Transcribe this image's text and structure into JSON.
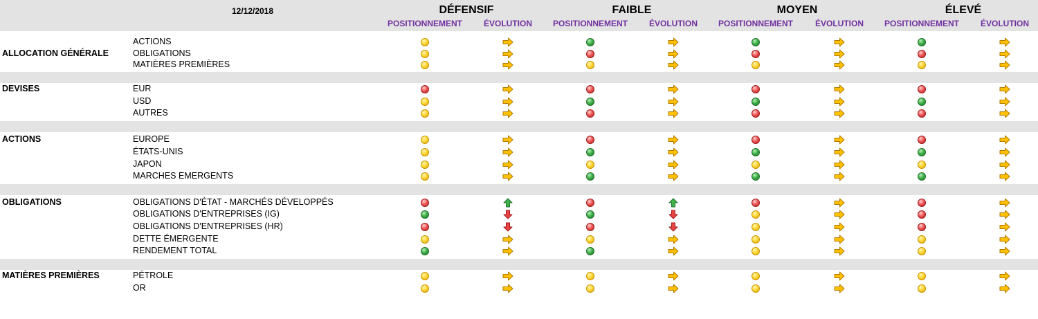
{
  "header": {
    "date": "12/12/2018",
    "profiles": [
      "DÉFENSIF",
      "FAIBLE",
      "MOYEN",
      "ÉLEVÉ"
    ],
    "sub_labels": {
      "position": "POSITIONNEMENT",
      "evolution": "ÉVOLUTION"
    }
  },
  "icons": {
    "yellow": "yellow-circle-icon",
    "green": "green-circle-icon",
    "red": "red-circle-icon",
    "right": "right-arrow-icon",
    "up": "up-arrow-icon",
    "down": "down-arrow-icon"
  },
  "colors": {
    "header_band": "#e3e3e3",
    "subheader_text": "#7030a0",
    "arrow_right": "#ffc000",
    "arrow_up": "#3fb24a",
    "arrow_down": "#e84545"
  },
  "sections": [
    {
      "name": "ALLOCATION GÉNÉRALE",
      "rows": [
        {
          "label": "ACTIONS",
          "cells": [
            [
              "yellow",
              "right"
            ],
            [
              "green",
              "right"
            ],
            [
              "green",
              "right"
            ],
            [
              "green",
              "right"
            ]
          ]
        },
        {
          "label": "OBLIGATIONS",
          "cells": [
            [
              "yellow",
              "right"
            ],
            [
              "red",
              "right"
            ],
            [
              "red",
              "right"
            ],
            [
              "red",
              "right"
            ]
          ]
        },
        {
          "label": "MATIÈRES PREMIÈRES",
          "cells": [
            [
              "yellow",
              "right"
            ],
            [
              "yellow",
              "right"
            ],
            [
              "yellow",
              "right"
            ],
            [
              "yellow",
              "right"
            ]
          ]
        }
      ]
    },
    {
      "name": "DEVISES",
      "rows": [
        {
          "label": "EUR",
          "cells": [
            [
              "red",
              "right"
            ],
            [
              "red",
              "right"
            ],
            [
              "red",
              "right"
            ],
            [
              "red",
              "right"
            ]
          ]
        },
        {
          "label": "USD",
          "cells": [
            [
              "yellow",
              "right"
            ],
            [
              "green",
              "right"
            ],
            [
              "green",
              "right"
            ],
            [
              "green",
              "right"
            ]
          ]
        },
        {
          "label": "AUTRES",
          "cells": [
            [
              "yellow",
              "right"
            ],
            [
              "red",
              "right"
            ],
            [
              "red",
              "right"
            ],
            [
              "red",
              "right"
            ]
          ]
        }
      ]
    },
    {
      "name": "ACTIONS",
      "rows": [
        {
          "label": "EUROPE",
          "cells": [
            [
              "yellow",
              "right"
            ],
            [
              "red",
              "right"
            ],
            [
              "red",
              "right"
            ],
            [
              "red",
              "right"
            ]
          ]
        },
        {
          "label": "ÉTATS-UNIS",
          "cells": [
            [
              "yellow",
              "right"
            ],
            [
              "green",
              "right"
            ],
            [
              "green",
              "right"
            ],
            [
              "green",
              "right"
            ]
          ]
        },
        {
          "label": "JAPON",
          "cells": [
            [
              "yellow",
              "right"
            ],
            [
              "yellow",
              "right"
            ],
            [
              "yellow",
              "right"
            ],
            [
              "yellow",
              "right"
            ]
          ]
        },
        {
          "label": "MARCHES EMERGENTS",
          "cells": [
            [
              "yellow",
              "right"
            ],
            [
              "green",
              "right"
            ],
            [
              "green",
              "right"
            ],
            [
              "green",
              "right"
            ]
          ]
        }
      ]
    },
    {
      "name": "OBLIGATIONS",
      "rows": [
        {
          "label": "OBLIGATIONS D'ÉTAT - MARCHÉS DÉVELOPPÉS",
          "cells": [
            [
              "red",
              "up"
            ],
            [
              "red",
              "up"
            ],
            [
              "red",
              "right"
            ],
            [
              "red",
              "right"
            ]
          ]
        },
        {
          "label": "OBLIGATIONS D'ENTREPRISES (IG)",
          "cells": [
            [
              "green",
              "down"
            ],
            [
              "green",
              "down"
            ],
            [
              "yellow",
              "right"
            ],
            [
              "red",
              "right"
            ]
          ]
        },
        {
          "label": "OBLIGATIONS D'ENTREPRISES (HR)",
          "cells": [
            [
              "red",
              "down"
            ],
            [
              "red",
              "down"
            ],
            [
              "yellow",
              "right"
            ],
            [
              "red",
              "right"
            ]
          ]
        },
        {
          "label": "DETTE ÉMERGENTE",
          "cells": [
            [
              "yellow",
              "right"
            ],
            [
              "yellow",
              "right"
            ],
            [
              "yellow",
              "right"
            ],
            [
              "yellow",
              "right"
            ]
          ]
        },
        {
          "label": "RENDEMENT TOTAL",
          "cells": [
            [
              "green",
              "right"
            ],
            [
              "green",
              "right"
            ],
            [
              "yellow",
              "right"
            ],
            [
              "yellow",
              "right"
            ]
          ]
        }
      ]
    },
    {
      "name": "MATIÈRES PREMIÈRES",
      "rows": [
        {
          "label": "PÉTROLE",
          "cells": [
            [
              "yellow",
              "right"
            ],
            [
              "yellow",
              "right"
            ],
            [
              "yellow",
              "right"
            ],
            [
              "yellow",
              "right"
            ]
          ]
        },
        {
          "label": "OR",
          "cells": [
            [
              "yellow",
              "right"
            ],
            [
              "yellow",
              "right"
            ],
            [
              "yellow",
              "right"
            ],
            [
              "yellow",
              "right"
            ]
          ]
        }
      ]
    }
  ]
}
